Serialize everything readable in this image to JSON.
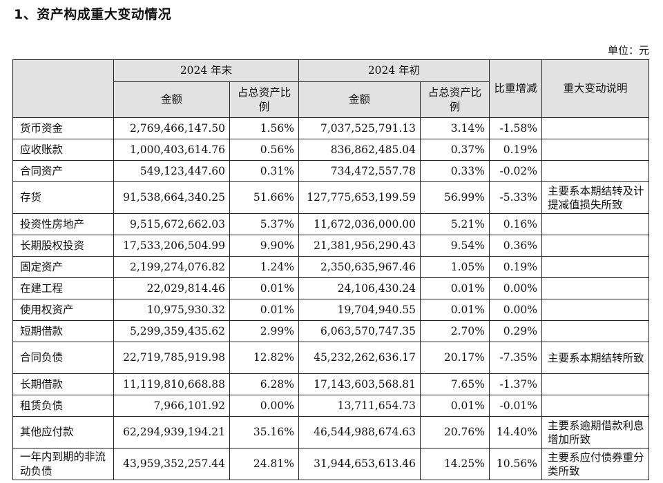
{
  "heading": "1、资产构成重大变动情况",
  "unit": "单位：元",
  "table": {
    "group_end": "2024 年末",
    "group_begin": "2024 年初",
    "col_amount": "金额",
    "col_ratio": "占总资产比例",
    "col_change": "比重增减",
    "col_note": "重大变动说明",
    "rows": [
      {
        "name": "货币资金",
        "end_amount": "2,769,466,147.50",
        "end_ratio": "1.56%",
        "begin_amount": "7,037,525,791.13",
        "begin_ratio": "3.14%",
        "change": "-1.58%",
        "note": ""
      },
      {
        "name": "应收账款",
        "end_amount": "1,000,403,614.76",
        "end_ratio": "0.56%",
        "begin_amount": "836,862,485.04",
        "begin_ratio": "0.37%",
        "change": "0.19%",
        "note": ""
      },
      {
        "name": "合同资产",
        "end_amount": "549,123,447.60",
        "end_ratio": "0.31%",
        "begin_amount": "734,472,557.78",
        "begin_ratio": "0.33%",
        "change": "-0.02%",
        "note": ""
      },
      {
        "name": "存货",
        "end_amount": "91,538,664,340.25",
        "end_ratio": "51.66%",
        "begin_amount": "127,775,653,199.59",
        "begin_ratio": "56.99%",
        "change": "-5.33%",
        "note": "主要系本期结转及计提减值损失所致"
      },
      {
        "name": "投资性房地产",
        "end_amount": "9,515,672,662.03",
        "end_ratio": "5.37%",
        "begin_amount": "11,672,036,000.00",
        "begin_ratio": "5.21%",
        "change": "0.16%",
        "note": ""
      },
      {
        "name": "长期股权投资",
        "end_amount": "17,533,206,504.99",
        "end_ratio": "9.90%",
        "begin_amount": "21,381,956,290.43",
        "begin_ratio": "9.54%",
        "change": "0.36%",
        "note": ""
      },
      {
        "name": "固定资产",
        "end_amount": "2,199,274,076.82",
        "end_ratio": "1.24%",
        "begin_amount": "2,350,635,967.46",
        "begin_ratio": "1.05%",
        "change": "0.19%",
        "note": ""
      },
      {
        "name": "在建工程",
        "end_amount": "22,029,814.46",
        "end_ratio": "0.01%",
        "begin_amount": "24,106,430.24",
        "begin_ratio": "0.01%",
        "change": "0.00%",
        "note": ""
      },
      {
        "name": "使用权资产",
        "end_amount": "10,975,930.32",
        "end_ratio": "0.01%",
        "begin_amount": "19,704,940.55",
        "begin_ratio": "0.01%",
        "change": "0.00%",
        "note": ""
      },
      {
        "name": "短期借款",
        "end_amount": "5,299,359,435.62",
        "end_ratio": "2.99%",
        "begin_amount": "6,063,570,747.35",
        "begin_ratio": "2.70%",
        "change": "0.29%",
        "note": ""
      },
      {
        "name": "合同负债",
        "end_amount": "22,719,785,919.98",
        "end_ratio": "12.82%",
        "begin_amount": "45,232,262,636.17",
        "begin_ratio": "20.17%",
        "change": "-7.35%",
        "note": "主要系本期结转所致"
      },
      {
        "name": "长期借款",
        "end_amount": "11,119,810,668.88",
        "end_ratio": "6.28%",
        "begin_amount": "17,143,603,568.81",
        "begin_ratio": "7.65%",
        "change": "-1.37%",
        "note": ""
      },
      {
        "name": "租赁负债",
        "end_amount": "7,966,101.92",
        "end_ratio": "0.00%",
        "begin_amount": "13,711,654.73",
        "begin_ratio": "0.01%",
        "change": "-0.01%",
        "note": ""
      },
      {
        "name": "其他应付款",
        "end_amount": "62,294,939,194.21",
        "end_ratio": "35.16%",
        "begin_amount": "46,544,988,674.63",
        "begin_ratio": "20.76%",
        "change": "14.40%",
        "note": "主要系逾期借款利息增加所致"
      },
      {
        "name": "一年内到期的非流动负债",
        "end_amount": "43,959,352,257.44",
        "end_ratio": "24.81%",
        "begin_amount": "31,944,653,613.46",
        "begin_ratio": "14.25%",
        "change": "10.56%",
        "note": "主要系应付债券重分类所致"
      }
    ]
  }
}
